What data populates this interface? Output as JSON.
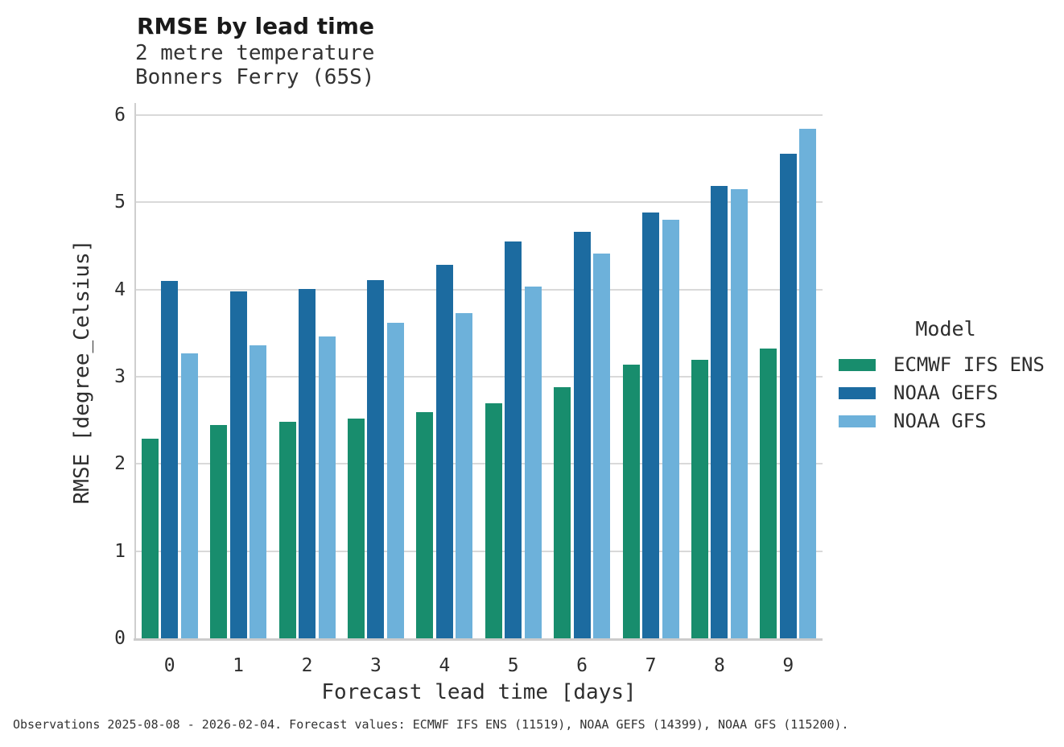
{
  "header": {
    "title": "RMSE by lead time",
    "subtitle_line1": "2 metre temperature",
    "subtitle_line2": "Bonners Ferry (65S)"
  },
  "footer": {
    "text": "Observations 2025-08-08 - 2026-02-04. Forecast values: ECMWF IFS ENS (11519), NOAA GEFS (14399), NOAA GFS (115200)."
  },
  "colors": {
    "grid": "#d9d9d9",
    "spine": "#cfcfcf",
    "text": "#2e2e2e"
  },
  "chart_data": {
    "type": "bar",
    "title": "RMSE by lead time",
    "subtitle": [
      "2 metre temperature",
      "Bonners Ferry (65S)"
    ],
    "xlabel": "Forecast lead time [days]",
    "ylabel": "RMSE [degree_Celsius]",
    "categories": [
      "0",
      "1",
      "2",
      "3",
      "4",
      "5",
      "6",
      "7",
      "8",
      "9"
    ],
    "yticks": [
      0,
      1,
      2,
      3,
      4,
      5,
      6
    ],
    "ylim": [
      0,
      6
    ],
    "grid": true,
    "legend_title": "Model",
    "legend_position": "right",
    "series": [
      {
        "name": "ECMWF IFS ENS",
        "color": "#188d6d",
        "values": [
          2.29,
          2.45,
          2.48,
          2.52,
          2.59,
          2.7,
          2.88,
          3.14,
          3.19,
          3.32
        ]
      },
      {
        "name": "NOAA GEFS",
        "color": "#1c6ba0",
        "values": [
          4.1,
          3.98,
          4.01,
          4.11,
          4.28,
          4.55,
          4.66,
          4.88,
          5.19,
          5.56
        ]
      },
      {
        "name": "NOAA GFS",
        "color": "#6db1da",
        "values": [
          3.27,
          3.36,
          3.46,
          3.62,
          3.73,
          4.03,
          4.41,
          4.8,
          5.15,
          5.84
        ]
      }
    ]
  }
}
